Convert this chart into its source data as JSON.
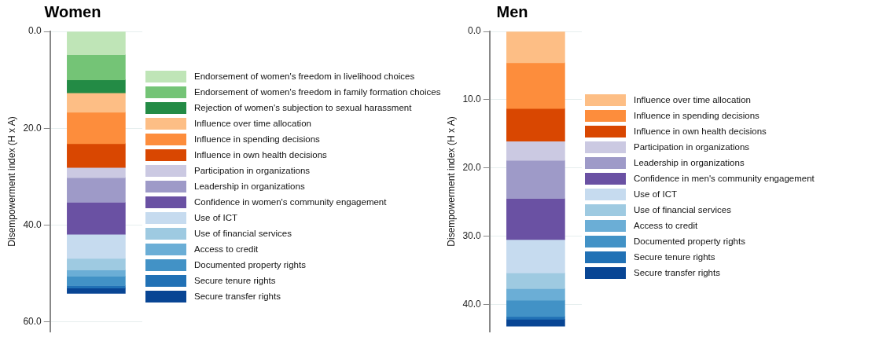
{
  "chart_data": [
    {
      "type": "bar",
      "title": "Women",
      "ylabel": "Disempowerment index (H x A)",
      "categories": [
        null
      ],
      "stacked": true,
      "ylim": [
        62,
        0
      ],
      "yticks": [
        {
          "value": 0,
          "label": "0.0"
        },
        {
          "value": 20,
          "label": "20.0"
        },
        {
          "value": 40,
          "label": "40.0"
        },
        {
          "value": 60,
          "label": "60.0"
        }
      ],
      "grid": "y",
      "legend": "right",
      "tick_labels": "y",
      "series": [
        {
          "name": "Endorsement of women's freedom in livelihood choices",
          "color": "#bfe5b7",
          "values": [
            4.8
          ]
        },
        {
          "name": "Endorsement of women's freedom in family formation choices",
          "color": "#74c476",
          "values": [
            5.2
          ]
        },
        {
          "name": "Rejection of women's subjection to sexual harassment",
          "color": "#238b45",
          "values": [
            2.7
          ]
        },
        {
          "name": "Influence over time allocation",
          "color": "#fdbe85",
          "values": [
            4.0
          ]
        },
        {
          "name": "Influence in spending decisions",
          "color": "#fd8d3c",
          "values": [
            6.5
          ]
        },
        {
          "name": "Influence in own health decisions",
          "color": "#d94701",
          "values": [
            4.9
          ]
        },
        {
          "name": "Participation in organizations",
          "color": "#cbc9e2",
          "values": [
            2.1
          ]
        },
        {
          "name": "Leadership in organizations",
          "color": "#9e9ac8",
          "values": [
            5.1
          ]
        },
        {
          "name": "Confidence in women's community engagement",
          "color": "#6a51a3",
          "values": [
            6.6
          ]
        },
        {
          "name": "Use of ICT",
          "color": "#c6dbef",
          "values": [
            5.0
          ]
        },
        {
          "name": "Use of financial services",
          "color": "#9ecae1",
          "values": [
            2.4
          ]
        },
        {
          "name": "Access to credit",
          "color": "#6baed6",
          "values": [
            1.3
          ]
        },
        {
          "name": "Documented property rights",
          "color": "#4292c6",
          "values": [
            1.9
          ]
        },
        {
          "name": "Secure tenure rights",
          "color": "#2171b5",
          "values": [
            0.5
          ]
        },
        {
          "name": "Secure transfer rights",
          "color": "#084594",
          "values": [
            1.1
          ]
        }
      ]
    },
    {
      "type": "bar",
      "title": "Men",
      "ylabel": "Disempowerment index (H x A)",
      "categories": [
        null
      ],
      "stacked": true,
      "ylim": [
        44,
        0
      ],
      "yticks": [
        {
          "value": 0,
          "label": "0.0"
        },
        {
          "value": 10,
          "label": "10.0"
        },
        {
          "value": 20,
          "label": "20.0"
        },
        {
          "value": 30,
          "label": "30.0"
        },
        {
          "value": 40,
          "label": "40.0"
        }
      ],
      "grid": "y",
      "legend": "right",
      "tick_labels": "y",
      "series": [
        {
          "name": "Influence over time allocation",
          "color": "#fdbe85",
          "values": [
            4.6
          ]
        },
        {
          "name": "Influence in spending decisions",
          "color": "#fd8d3c",
          "values": [
            6.7
          ]
        },
        {
          "name": "Influence in own health decisions",
          "color": "#d94701",
          "values": [
            4.8
          ]
        },
        {
          "name": "Participation in organizations",
          "color": "#cbc9e2",
          "values": [
            2.8
          ]
        },
        {
          "name": "Leadership in organizations",
          "color": "#9e9ac8",
          "values": [
            5.6
          ]
        },
        {
          "name": "Confidence in men's community engagement",
          "color": "#6a51a3",
          "values": [
            6.0
          ]
        },
        {
          "name": "Use of ICT",
          "color": "#c6dbef",
          "values": [
            4.9
          ]
        },
        {
          "name": "Use of financial services",
          "color": "#9ecae1",
          "values": [
            2.3
          ]
        },
        {
          "name": "Access to credit",
          "color": "#6baed6",
          "values": [
            1.7
          ]
        },
        {
          "name": "Documented property rights",
          "color": "#4292c6",
          "values": [
            2.4
          ]
        },
        {
          "name": "Secure tenure rights",
          "color": "#2171b5",
          "values": [
            0.4
          ]
        },
        {
          "name": "Secure transfer rights",
          "color": "#084594",
          "values": [
            1.0
          ]
        }
      ]
    }
  ]
}
